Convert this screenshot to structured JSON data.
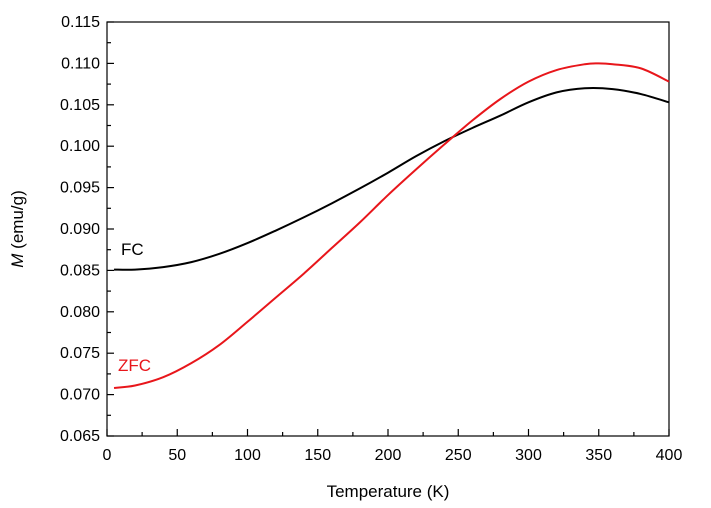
{
  "chart_data": {
    "type": "line",
    "title": "",
    "xlabel": "Temperature (K)",
    "ylabel_symbol": "M",
    "ylabel_unit": " (emu/g)",
    "xlim": [
      0,
      400
    ],
    "ylim": [
      0.065,
      0.115
    ],
    "xticks": [
      "0",
      "50",
      "100",
      "150",
      "200",
      "250",
      "300",
      "350",
      "400"
    ],
    "yticks": [
      "0.065",
      "0.070",
      "0.075",
      "0.080",
      "0.085",
      "0.090",
      "0.095",
      "0.100",
      "0.105",
      "0.110",
      "0.115"
    ],
    "grid": false,
    "series": [
      {
        "name": "FC",
        "color": "#000000",
        "x": [
          5,
          20,
          40,
          60,
          80,
          100,
          120,
          140,
          160,
          180,
          200,
          220,
          240,
          260,
          280,
          300,
          320,
          340,
          360,
          380,
          400
        ],
        "y": [
          0.0851,
          0.0851,
          0.0854,
          0.086,
          0.087,
          0.0883,
          0.0898,
          0.0914,
          0.0931,
          0.0949,
          0.0968,
          0.0988,
          0.1006,
          0.1022,
          0.1037,
          0.1053,
          0.1065,
          0.107,
          0.1069,
          0.1063,
          0.1053
        ]
      },
      {
        "name": "ZFC",
        "color": "#e8161b",
        "x": [
          5,
          20,
          40,
          60,
          80,
          100,
          120,
          140,
          160,
          180,
          200,
          220,
          240,
          260,
          280,
          300,
          320,
          340,
          350,
          360,
          380,
          400
        ],
        "y": [
          0.0708,
          0.0711,
          0.0721,
          0.0738,
          0.076,
          0.0788,
          0.0817,
          0.0846,
          0.0877,
          0.0908,
          0.0941,
          0.0972,
          0.1002,
          0.1031,
          0.1057,
          0.1078,
          0.1092,
          0.1099,
          0.11,
          0.1099,
          0.1094,
          0.1078
        ]
      }
    ]
  }
}
